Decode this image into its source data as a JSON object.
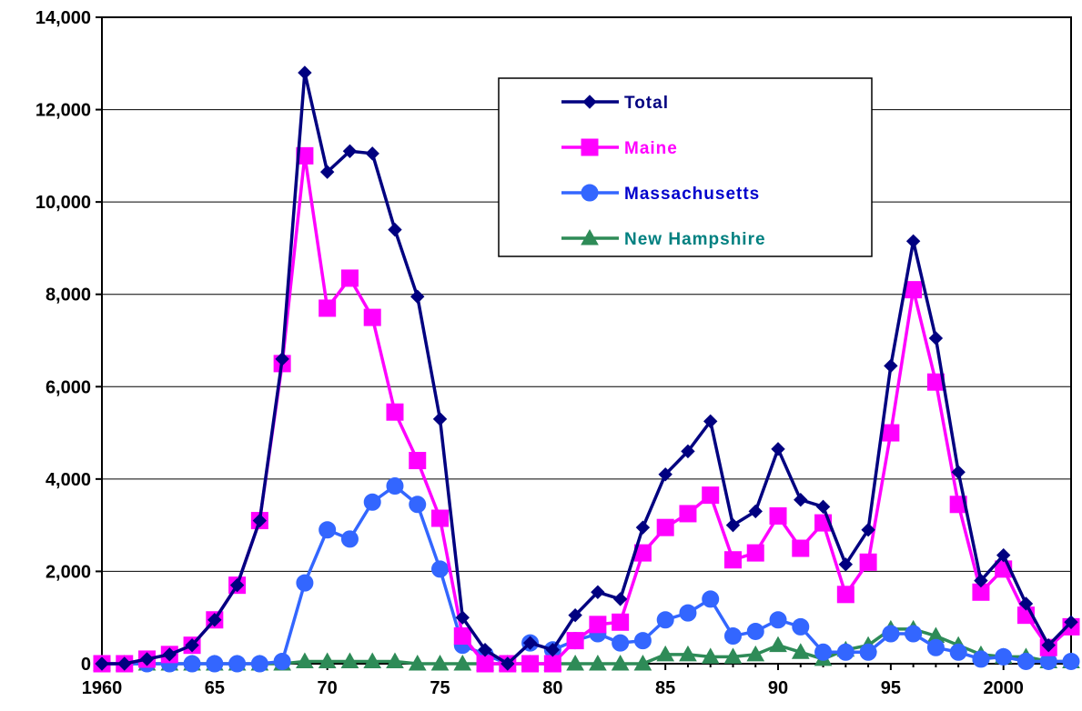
{
  "chart_data": {
    "type": "line",
    "title": "",
    "xlabel": "",
    "ylabel": "",
    "xlim": [
      1960,
      2003
    ],
    "ylim": [
      0,
      14000
    ],
    "grid": "horizontal",
    "legend_position": "top-center-right",
    "y_ticks": [
      "0",
      "2,000",
      "4,000",
      "6,000",
      "8,000",
      "10,000",
      "12,000",
      "14,000"
    ],
    "y_tick_values": [
      0,
      2000,
      4000,
      6000,
      8000,
      10000,
      12000,
      14000
    ],
    "x_ticks": [
      "1960",
      "65",
      "70",
      "75",
      "80",
      "85",
      "90",
      "95",
      "2000"
    ],
    "x_tick_values": [
      1960,
      1965,
      1970,
      1975,
      1980,
      1985,
      1990,
      1995,
      2000
    ],
    "x": [
      1960,
      1961,
      1962,
      1963,
      1964,
      1965,
      1966,
      1967,
      1968,
      1969,
      1970,
      1971,
      1972,
      1973,
      1974,
      1975,
      1976,
      1977,
      1978,
      1979,
      1980,
      1981,
      1982,
      1983,
      1984,
      1985,
      1986,
      1987,
      1988,
      1989,
      1990,
      1991,
      1992,
      1993,
      1994,
      1995,
      1996,
      1997,
      1998,
      1999,
      2000,
      2001,
      2002,
      2003
    ],
    "series": [
      {
        "name": "Total",
        "color": "#000080",
        "marker": "diamond",
        "values": [
          0,
          0,
          100,
          200,
          400,
          950,
          1700,
          3100,
          6600,
          12800,
          10650,
          11100,
          11050,
          9400,
          7950,
          5300,
          1000,
          300,
          0,
          450,
          300,
          1050,
          1550,
          1400,
          2950,
          4100,
          4600,
          5250,
          3000,
          3300,
          4650,
          3550,
          3400,
          2150,
          2900,
          6450,
          9150,
          7050,
          4150,
          1800,
          2350,
          1300,
          400,
          900
        ]
      },
      {
        "name": "Maine",
        "color": "#ff00ff",
        "marker": "square",
        "values": [
          0,
          0,
          100,
          200,
          400,
          950,
          1700,
          3100,
          6500,
          11000,
          7700,
          8350,
          7500,
          5450,
          4400,
          3150,
          600,
          0,
          0,
          0,
          0,
          500,
          850,
          900,
          2400,
          2950,
          3250,
          3650,
          2250,
          2400,
          3200,
          2500,
          3050,
          1500,
          2200,
          5000,
          8100,
          6100,
          3450,
          1550,
          2050,
          1050,
          350,
          800
        ]
      },
      {
        "name": "Massachusetts",
        "color": "#3366ff",
        "marker": "circle",
        "values": [
          0,
          0,
          0,
          0,
          0,
          0,
          0,
          0,
          50,
          1750,
          2900,
          2700,
          3500,
          3850,
          3450,
          2050,
          400,
          200,
          0,
          450,
          300,
          500,
          650,
          450,
          500,
          950,
          1100,
          1400,
          600,
          700,
          950,
          800,
          250,
          250,
          250,
          650,
          650,
          350,
          250,
          100,
          150,
          50,
          50,
          50
        ]
      },
      {
        "name": "New Hampshire",
        "color": "#2e8b57",
        "marker": "triangle",
        "values": [
          0,
          0,
          0,
          0,
          0,
          0,
          0,
          0,
          0,
          50,
          50,
          50,
          50,
          50,
          0,
          0,
          0,
          0,
          0,
          0,
          0,
          0,
          0,
          0,
          0,
          200,
          200,
          150,
          150,
          200,
          400,
          250,
          100,
          300,
          400,
          750,
          750,
          600,
          400,
          200,
          150,
          150,
          50,
          50
        ]
      }
    ],
    "legend_text_colors": [
      "#000080",
      "#ff00ff",
      "#0000cc",
      "#008080"
    ]
  }
}
